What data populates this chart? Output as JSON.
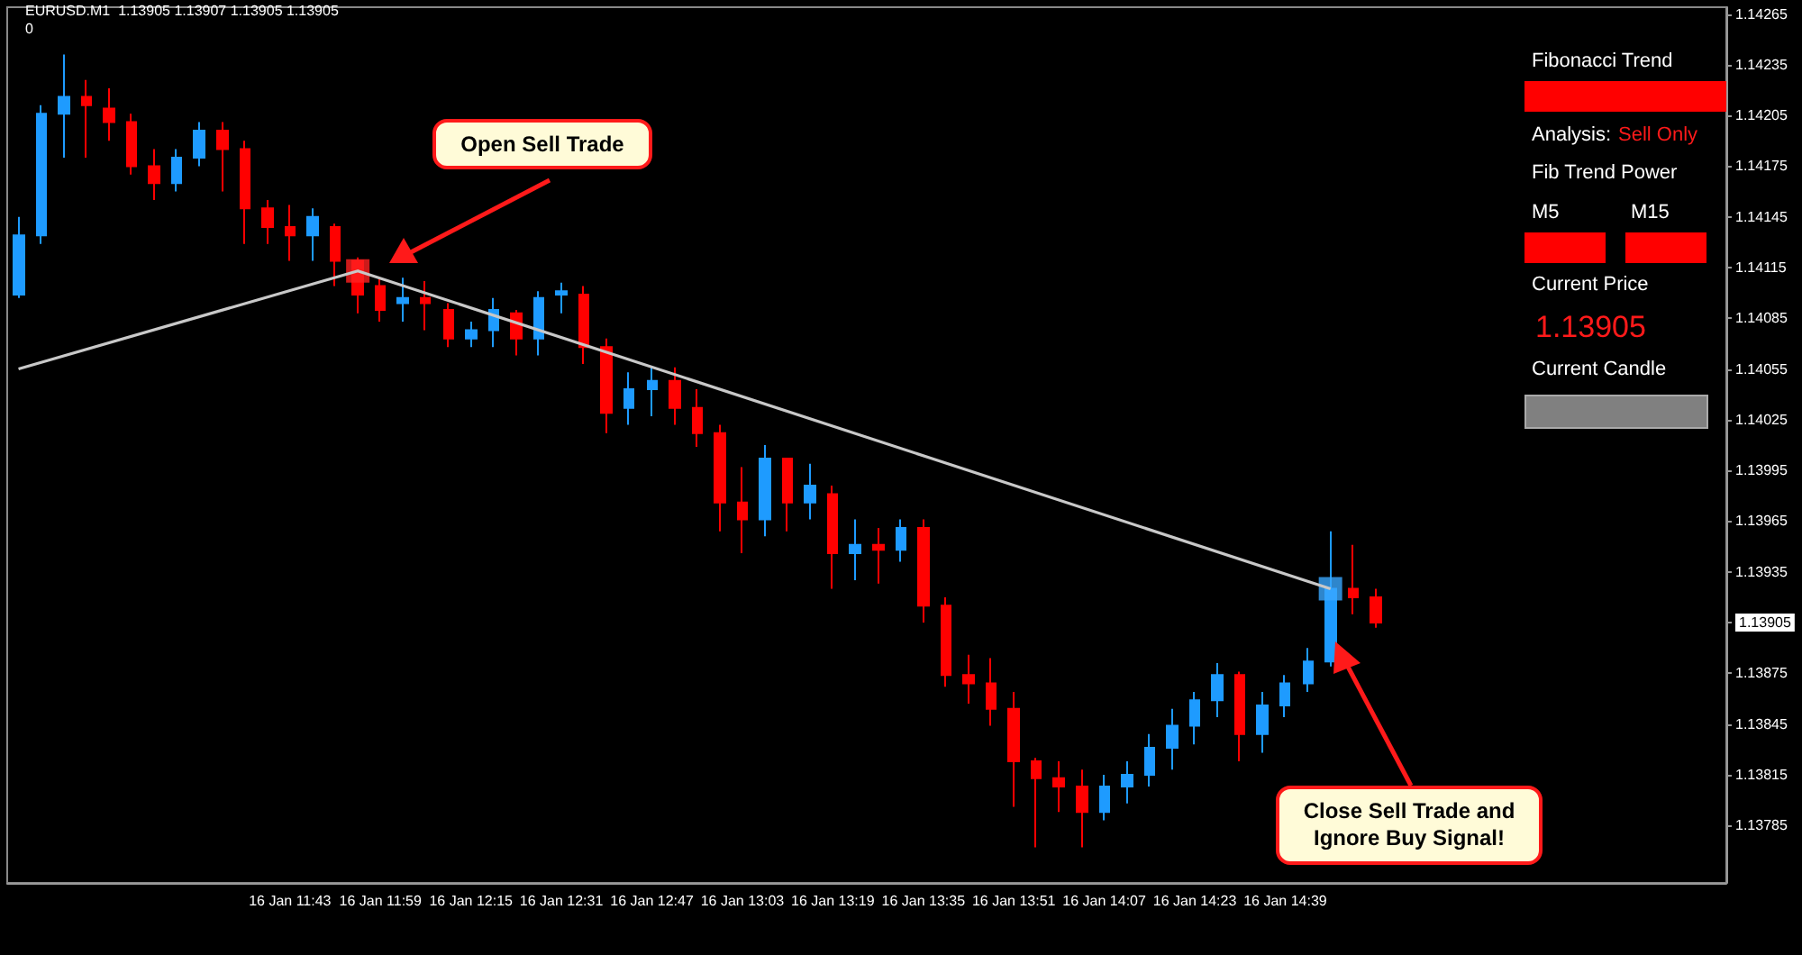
{
  "chart_data": {
    "type": "candlestick",
    "title": "EURUSD.M1  1.13905 1.13907 1.13905 1.13905",
    "subtitle": "0",
    "categories": [
      null,
      null,
      null,
      null,
      null,
      null,
      null,
      null,
      null,
      null,
      null,
      null,
      "16 Jan 11:43",
      null,
      null,
      null,
      "16 Jan 11:59",
      null,
      null,
      null,
      "16 Jan 12:15",
      null,
      null,
      null,
      "16 Jan 12:31",
      null,
      null,
      null,
      "16 Jan 12:47",
      null,
      null,
      null,
      "16 Jan 13:03",
      null,
      null,
      null,
      "16 Jan 13:19",
      null,
      null,
      null,
      "16 Jan 13:35",
      null,
      null,
      null,
      "16 Jan 13:51",
      null,
      null,
      null,
      "16 Jan 14:07",
      null,
      null,
      null,
      "16 Jan 14:23",
      null,
      null,
      null,
      "16 Jan 14:39",
      null,
      null,
      null,
      null,
      null,
      null,
      null,
      null,
      null,
      null,
      null,
      null,
      null,
      null,
      null,
      null,
      null,
      null,
      null
    ],
    "ohlc": [
      [
        1.14099,
        1.14145,
        1.14097,
        1.14134
      ],
      [
        1.14134,
        1.14211,
        1.14129,
        1.14206
      ],
      [
        1.14206,
        1.14241,
        1.1418,
        1.14216
      ],
      [
        1.14216,
        1.14226,
        1.1418,
        1.14211
      ],
      [
        1.14209,
        1.14221,
        1.1419,
        1.14201
      ],
      [
        1.14201,
        1.14206,
        1.1417,
        1.14175
      ],
      [
        1.14175,
        1.14185,
        1.14155,
        1.14165
      ],
      [
        1.14165,
        1.14185,
        1.1416,
        1.1418
      ],
      [
        1.1418,
        1.14201,
        1.14175,
        1.14196
      ],
      [
        1.14196,
        1.14201,
        1.1416,
        1.14185
      ],
      [
        1.14185,
        1.1419,
        1.14129,
        1.1415
      ],
      [
        1.1415,
        1.14155,
        1.14129,
        1.14139
      ],
      [
        1.14139,
        1.14152,
        1.14119,
        1.14134
      ],
      [
        1.14134,
        1.1415,
        1.14119,
        1.14145
      ],
      [
        1.14139,
        1.14141,
        1.14104,
        1.14119
      ],
      [
        1.14119,
        1.14121,
        1.14088,
        1.14099
      ],
      [
        1.14104,
        1.14109,
        1.14083,
        1.1409
      ],
      [
        1.14094,
        1.14109,
        1.14083,
        1.14097
      ],
      [
        1.14097,
        1.14107,
        1.14078,
        1.14094
      ],
      [
        1.1409,
        1.14094,
        1.14068,
        1.14073
      ],
      [
        1.14073,
        1.14083,
        1.14068,
        1.14078
      ],
      [
        1.14078,
        1.14097,
        1.14068,
        1.1409
      ],
      [
        1.14088,
        1.1409,
        1.14063,
        1.14073
      ],
      [
        1.14073,
        1.14101,
        1.14063,
        1.14097
      ],
      [
        1.14099,
        1.14106,
        1.14088,
        1.14101
      ],
      [
        1.14099,
        1.14104,
        1.14058,
        1.14068
      ],
      [
        1.14068,
        1.14073,
        1.14017,
        1.14029
      ],
      [
        1.14032,
        1.14053,
        1.14022,
        1.14043
      ],
      [
        1.14043,
        1.14056,
        1.14027,
        1.14048
      ],
      [
        1.14048,
        1.14056,
        1.14022,
        1.14032
      ],
      [
        1.14032,
        1.14043,
        1.14009,
        1.14017
      ],
      [
        1.14017,
        1.14022,
        1.13959,
        1.13976
      ],
      [
        1.13976,
        1.13997,
        1.13946,
        1.13966
      ],
      [
        1.13966,
        1.1401,
        1.13956,
        1.14002
      ],
      [
        1.14002,
        1.14002,
        1.13959,
        1.13976
      ],
      [
        1.13976,
        1.13999,
        1.13966,
        1.13986
      ],
      [
        1.13981,
        1.13986,
        1.13925,
        1.13946
      ],
      [
        1.13946,
        1.13966,
        1.1393,
        1.13951
      ],
      [
        1.13951,
        1.13961,
        1.13928,
        1.13948
      ],
      [
        1.13948,
        1.13966,
        1.13941,
        1.13961
      ],
      [
        1.13961,
        1.13966,
        1.13905,
        1.13915
      ],
      [
        1.13915,
        1.1392,
        1.13867,
        1.13874
      ],
      [
        1.13874,
        1.13886,
        1.13857,
        1.13869
      ],
      [
        1.13869,
        1.13884,
        1.13844,
        1.13854
      ],
      [
        1.13854,
        1.13864,
        1.13796,
        1.13823
      ],
      [
        1.13823,
        1.13825,
        1.13772,
        1.13813
      ],
      [
        1.13813,
        1.13823,
        1.13793,
        1.13808
      ],
      [
        1.13808,
        1.13818,
        1.13772,
        1.13793
      ],
      [
        1.13793,
        1.13815,
        1.13788,
        1.13808
      ],
      [
        1.13808,
        1.13823,
        1.13798,
        1.13815
      ],
      [
        1.13815,
        1.13839,
        1.13808,
        1.13831
      ],
      [
        1.13831,
        1.13854,
        1.13818,
        1.13844
      ],
      [
        1.13844,
        1.13864,
        1.13833,
        1.13859
      ],
      [
        1.13859,
        1.13881,
        1.13849,
        1.13874
      ],
      [
        1.13874,
        1.13876,
        1.13823,
        1.13839
      ],
      [
        1.13839,
        1.13864,
        1.13828,
        1.13856
      ],
      [
        1.13856,
        1.13874,
        1.13849,
        1.13869
      ],
      [
        1.13869,
        1.1389,
        1.13864,
        1.13882
      ],
      [
        1.13882,
        1.13959,
        1.13879,
        1.13925
      ],
      [
        1.13925,
        1.13951,
        1.1391,
        1.1392
      ],
      [
        1.1392,
        1.13925,
        1.13902,
        1.13905
      ],
      null,
      null,
      null,
      null,
      null,
      null,
      null,
      null,
      null,
      null,
      null,
      null,
      null,
      null,
      null
    ],
    "colors": [
      "#1e9bff",
      "#1e9bff",
      "#1e9bff",
      "#ff0000",
      "#ff0000",
      "#ff0000",
      "#ff0000",
      "#1e9bff",
      "#1e9bff",
      "#ff0000",
      "#ff0000",
      "#ff0000",
      "#ff0000",
      "#1e9bff",
      "#ff0000",
      "#ff0000",
      "#ff0000",
      "#1e9bff",
      "#ff0000",
      "#ff0000",
      "#1e9bff",
      "#1e9bff",
      "#ff0000",
      "#1e9bff",
      "#1e9bff",
      "#ff0000",
      "#ff0000",
      "#1e9bff",
      "#1e9bff",
      "#ff0000",
      "#ff0000",
      "#ff0000",
      "#ff0000",
      "#1e9bff",
      "#ff0000",
      "#1e9bff",
      "#ff0000",
      "#1e9bff",
      "#ff0000",
      "#1e9bff",
      "#ff0000",
      "#ff0000",
      "#ff0000",
      "#ff0000",
      "#ff0000",
      "#ff0000",
      "#ff0000",
      "#ff0000",
      "#1e9bff",
      "#1e9bff",
      "#1e9bff",
      "#1e9bff",
      "#1e9bff",
      "#1e9bff",
      "#ff0000",
      "#1e9bff",
      "#1e9bff",
      "#1e9bff",
      "#1e9bff",
      "#ff0000",
      "#ff0000",
      null,
      null,
      null,
      null,
      null,
      null,
      null,
      null,
      null,
      null,
      null,
      null,
      null,
      null,
      null
    ],
    "series": [
      {
        "type": "line",
        "color": "#c8c8c8",
        "marker": "none",
        "line_style": "solid",
        "values": [
          1.14055,
          null,
          null,
          null,
          null,
          null,
          null,
          null,
          null,
          null,
          null,
          null,
          null,
          null,
          null,
          1.14113,
          null,
          null,
          null,
          null,
          null,
          null,
          null,
          null,
          null,
          null,
          null,
          null,
          null,
          null,
          null,
          null,
          null,
          null,
          null,
          null,
          null,
          null,
          null,
          null,
          null,
          null,
          null,
          null,
          null,
          null,
          null,
          null,
          null,
          null,
          null,
          null,
          null,
          null,
          null,
          null,
          null,
          null,
          1.13925,
          null,
          null,
          null,
          null,
          null,
          null,
          null,
          null,
          null,
          null,
          null,
          null,
          null,
          null,
          null,
          null,
          null
        ]
      },
      {
        "type": "scatter",
        "color": "#ff2020",
        "marker": "square",
        "values": [
          null,
          null,
          null,
          null,
          null,
          null,
          null,
          null,
          null,
          null,
          null,
          null,
          null,
          null,
          null,
          1.14113,
          null,
          null,
          null,
          null,
          null,
          null,
          null,
          null,
          null,
          null,
          null,
          null,
          null,
          null,
          null,
          null,
          null,
          null,
          null,
          null,
          null,
          null,
          null,
          null,
          null,
          null,
          null,
          null,
          null,
          null,
          null,
          null,
          null,
          null,
          null,
          null,
          null,
          null,
          null,
          null,
          null,
          null,
          null,
          null,
          null,
          null,
          null,
          null,
          null,
          null,
          null,
          null,
          null,
          null,
          null,
          null,
          null,
          null,
          null,
          null
        ]
      },
      {
        "type": "scatter",
        "color": "#39a8ff",
        "marker": "square",
        "values": [
          null,
          null,
          null,
          null,
          null,
          null,
          null,
          null,
          null,
          null,
          null,
          null,
          null,
          null,
          null,
          null,
          null,
          null,
          null,
          null,
          null,
          null,
          null,
          null,
          null,
          null,
          null,
          null,
          null,
          null,
          null,
          null,
          null,
          null,
          null,
          null,
          null,
          null,
          null,
          null,
          null,
          null,
          null,
          null,
          null,
          null,
          null,
          null,
          null,
          null,
          null,
          null,
          null,
          null,
          null,
          null,
          null,
          null,
          1.13925,
          null,
          null,
          null,
          null,
          null,
          null,
          null,
          null,
          null,
          null,
          null,
          null,
          null,
          null,
          null,
          null,
          null
        ]
      }
    ],
    "ylim": [
      1.13751,
      1.14269
    ],
    "yticks": [
      1.13785,
      1.13815,
      1.13845,
      1.13875,
      {
        "value": 1.13905,
        "label": "1.13905"
      },
      1.13935,
      1.13965,
      1.13995,
      1.14025,
      1.14055,
      1.14085,
      1.14115,
      1.14145,
      1.14175,
      1.14205,
      1.14235,
      1.14265
    ],
    "grid": false,
    "annotations": [
      "Open Sell Trade",
      "Close Sell Trade and Ignore Buy Signal!",
      "Fibonacci Trend",
      "Analysis:",
      "Sell Only",
      "Fib Trend Power",
      "M5",
      "M15",
      "Current Price",
      "1.13905",
      "Current Candle"
    ]
  }
}
